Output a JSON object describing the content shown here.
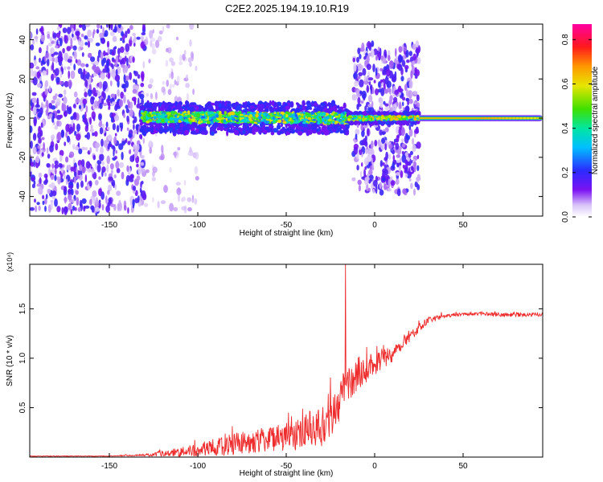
{
  "title": "C2E2.2025.194.19.10.R19",
  "chart_data": [
    {
      "type": "heatmap",
      "xlabel": "Height of straight line (km)",
      "ylabel": "Frequency (Hz)",
      "xlim": [
        -195,
        95
      ],
      "ylim": [
        -50,
        48
      ],
      "xticks": [
        -150,
        -100,
        -50,
        0,
        50
      ],
      "yticks": [
        -40,
        -20,
        0,
        20,
        40
      ],
      "colorbar": {
        "label": "Normalized spectral amplitude",
        "range": [
          0,
          0.87
        ],
        "ticks": [
          0.0,
          0.2,
          0.4,
          0.6,
          0.8
        ],
        "colormap": "white-purple-blue-cyan-green-yellow-orange-red-magenta"
      },
      "regions": [
        {
          "x_from": -195,
          "x_to": -130,
          "freq_spread": 48,
          "intensity": 0.07,
          "pattern": "broadband noise"
        },
        {
          "x_from": -130,
          "x_to": -100,
          "freq_spread": 48,
          "intensity": 0.03,
          "pattern": "sparse noise"
        },
        {
          "x_from": -132,
          "x_to": -15,
          "freq_center": 0,
          "freq_spread": 6,
          "intensity": 0.45,
          "pattern": "band"
        },
        {
          "x_from": -15,
          "x_to": 25,
          "freq_center": 0,
          "freq_spread": 2,
          "intensity": 0.5,
          "pattern": "band"
        },
        {
          "x_from": -12,
          "x_to": 25,
          "freq_spread": 38,
          "intensity": 0.06,
          "pattern": "broadband noise"
        },
        {
          "x_from": 25,
          "x_to": 95,
          "freq_center": 0,
          "freq_spread": 2,
          "intensity": 0.85,
          "pattern": "narrow line"
        }
      ]
    },
    {
      "type": "line",
      "xlabel": "Height of straight line (km)",
      "ylabel": "SNR (10 * v/v)",
      "multiplier": "(x10⁴)",
      "xlim": [
        -195,
        95
      ],
      "ylim": [
        0,
        1.95
      ],
      "xticks": [
        -150,
        -100,
        -50,
        0,
        50
      ],
      "yticks": [
        0.5,
        1.0,
        1.5
      ],
      "series": [
        {
          "color": "#ee2a2a",
          "x": [
            -195,
            -150,
            -130,
            -115,
            -100,
            -90,
            -80,
            -70,
            -60,
            -50,
            -40,
            -30,
            -25,
            -20,
            -17,
            -15,
            -10,
            0,
            10,
            20,
            30,
            40,
            50,
            60,
            70,
            80,
            95
          ],
          "y": [
            0.01,
            0.01,
            0.02,
            0.04,
            0.07,
            0.1,
            0.13,
            0.16,
            0.18,
            0.2,
            0.24,
            0.3,
            0.4,
            0.55,
            0.68,
            0.72,
            0.82,
            0.95,
            1.05,
            1.22,
            1.38,
            1.43,
            1.45,
            1.45,
            1.44,
            1.44,
            1.44
          ],
          "noise": [
            0.003,
            0.003,
            0.01,
            0.04,
            0.07,
            0.09,
            0.11,
            0.12,
            0.13,
            0.15,
            0.16,
            0.2,
            0.22,
            0.22,
            0.2,
            0.18,
            0.15,
            0.12,
            0.09,
            0.05,
            0.03,
            0.02,
            0.02,
            0.02,
            0.02,
            0.02,
            0.02
          ],
          "peak": {
            "x": -16.5,
            "y": 1.95
          }
        }
      ]
    }
  ]
}
